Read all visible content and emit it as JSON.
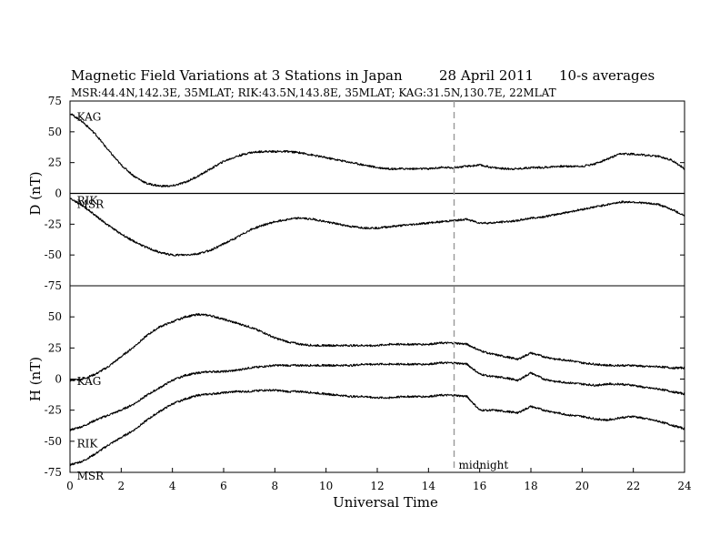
{
  "chart_data": {
    "type": "line",
    "title": {
      "main": "Magnetic Field Variations at 3 Stations in Japan",
      "date": "28  April     2011",
      "avg": "10-s averages"
    },
    "subtitle": "MSR:44.4N,142.3E, 35MLAT;  RIK:43.5N,143.8E, 35MLAT;  KAG:31.5N,130.7E, 22MLAT",
    "xlabel": "Universal Time",
    "xlim": [
      0,
      24
    ],
    "xticks": [
      "0",
      "2",
      "4",
      "6",
      "8",
      "10",
      "12",
      "14",
      "16",
      "18",
      "20",
      "22",
      "24"
    ],
    "grid": false,
    "annotation": {
      "label": "midnight",
      "x": 15
    },
    "panels": [
      {
        "ylabel": "D (nT)",
        "ylim": [
          -75,
          75
        ],
        "yticks": [
          "75",
          "50",
          "25",
          "0",
          "-25",
          "-50",
          "-75"
        ],
        "zero_line": true,
        "station_labels": [
          {
            "text": "KAG",
            "x": 0.2,
            "y": 62
          },
          {
            "text": "RIK",
            "x": 0.2,
            "y": -6
          },
          {
            "text": "MSR",
            "x": 0.2,
            "y": -9
          }
        ],
        "series": [
          {
            "station": "KAG",
            "x": [
              0,
              0.5,
              1,
              1.5,
              2,
              2.5,
              3,
              3.5,
              4,
              4.5,
              5,
              5.5,
              6,
              6.5,
              7,
              7.5,
              8,
              8.5,
              9,
              9.5,
              10,
              10.5,
              11,
              11.5,
              12,
              12.5,
              13,
              13.5,
              14,
              14.5,
              15,
              15.5,
              16,
              16.5,
              17,
              17.5,
              18,
              18.5,
              19,
              19.5,
              20,
              20.5,
              21,
              21.5,
              22,
              22.5,
              23,
              23.5,
              24
            ],
            "values": [
              65,
              58,
              48,
              35,
              23,
              14,
              8,
              6,
              6,
              9,
              14,
              20,
              26,
              30,
              33,
              34,
              34,
              34,
              33,
              31,
              29,
              27,
              25,
              23,
              21,
              20,
              20,
              20,
              20,
              21,
              21,
              22,
              23,
              21,
              20,
              20,
              21,
              21,
              22,
              22,
              22,
              24,
              28,
              32,
              32,
              31,
              30,
              27,
              20
            ]
          },
          {
            "station": "RIK/MSR",
            "x": [
              0,
              0.5,
              1,
              1.5,
              2,
              2.5,
              3,
              3.5,
              4,
              4.5,
              5,
              5.5,
              6,
              6.5,
              7,
              7.5,
              8,
              8.5,
              9,
              9.5,
              10,
              10.5,
              11,
              11.5,
              12,
              12.5,
              13,
              13.5,
              14,
              14.5,
              15,
              15.5,
              16,
              16.5,
              17,
              17.5,
              18,
              18.5,
              19,
              19.5,
              20,
              20.5,
              21,
              21.5,
              22,
              22.5,
              23,
              23.5,
              24
            ],
            "values": [
              -4,
              -10,
              -18,
              -26,
              -33,
              -39,
              -44,
              -48,
              -50,
              -50,
              -49,
              -46,
              -41,
              -36,
              -30,
              -26,
              -23,
              -21,
              -20,
              -21,
              -23,
              -25,
              -27,
              -28,
              -28,
              -27,
              -26,
              -25,
              -24,
              -23,
              -22,
              -21,
              -24,
              -24,
              -23,
              -22,
              -20,
              -19,
              -17,
              -15,
              -13,
              -11,
              -9,
              -7,
              -7,
              -8,
              -9,
              -13,
              -18
            ]
          }
        ]
      },
      {
        "ylabel": "H (nT)",
        "ylim": [
          -75,
          75
        ],
        "yticks": [
          "50",
          "25",
          "0",
          "-25",
          "-50",
          "-75"
        ],
        "zero_line": false,
        "station_labels": [
          {
            "text": "KAG",
            "x": 0.2,
            "y": -2
          },
          {
            "text": "RIK",
            "x": 0.2,
            "y": -52
          },
          {
            "text": "MSR",
            "x": 0.2,
            "y": -78
          }
        ],
        "series": [
          {
            "station": "KAG",
            "x": [
              0,
              0.5,
              1,
              1.5,
              2,
              2.5,
              3,
              3.5,
              4,
              4.5,
              5,
              5.5,
              6,
              6.5,
              7,
              7.5,
              8,
              8.5,
              9,
              9.5,
              10,
              10.5,
              11,
              11.5,
              12,
              12.5,
              13,
              13.5,
              14,
              14.5,
              15,
              15.5,
              16,
              16.5,
              17,
              17.5,
              18,
              18.5,
              19,
              19.5,
              20,
              20.5,
              21,
              21.5,
              22,
              22.5,
              23,
              23.5,
              24
            ],
            "values": [
              -1,
              0,
              4,
              10,
              18,
              26,
              35,
              42,
              46,
              50,
              52,
              51,
              48,
              45,
              42,
              38,
              33,
              30,
              28,
              27,
              27,
              27,
              27,
              27,
              27,
              28,
              28,
              28,
              28,
              29,
              29,
              28,
              23,
              20,
              18,
              16,
              21,
              18,
              16,
              15,
              13,
              12,
              11,
              11,
              11,
              10,
              10,
              9,
              9
            ]
          },
          {
            "station": "RIK",
            "x": [
              0,
              0.5,
              1,
              1.5,
              2,
              2.5,
              3,
              3.5,
              4,
              4.5,
              5,
              5.5,
              6,
              6.5,
              7,
              7.5,
              8,
              8.5,
              9,
              9.5,
              10,
              10.5,
              11,
              11.5,
              12,
              12.5,
              13,
              13.5,
              14,
              14.5,
              15,
              15.5,
              16,
              16.5,
              17,
              17.5,
              18,
              18.5,
              19,
              19.5,
              20,
              20.5,
              21,
              21.5,
              22,
              22.5,
              23,
              23.5,
              24
            ],
            "values": [
              -41,
              -38,
              -33,
              -29,
              -25,
              -20,
              -13,
              -7,
              -1,
              3,
              5,
              6,
              6,
              7,
              9,
              10,
              11,
              11,
              11,
              11,
              11,
              11,
              11,
              12,
              12,
              12,
              12,
              12,
              12,
              13,
              13,
              12,
              4,
              2,
              1,
              -1,
              5,
              0,
              -2,
              -3,
              -4,
              -5,
              -4,
              -4,
              -5,
              -7,
              -8,
              -10,
              -12
            ]
          },
          {
            "station": "MSR",
            "x": [
              0,
              0.5,
              1,
              1.5,
              2,
              2.5,
              3,
              3.5,
              4,
              4.5,
              5,
              5.5,
              6,
              6.5,
              7,
              7.5,
              8,
              8.5,
              9,
              9.5,
              10,
              10.5,
              11,
              11.5,
              12,
              12.5,
              13,
              13.5,
              14,
              14.5,
              15,
              15.5,
              16,
              16.5,
              17,
              17.5,
              18,
              18.5,
              19,
              19.5,
              20,
              20.5,
              21,
              21.5,
              22,
              22.5,
              23,
              23.5,
              24
            ],
            "values": [
              -69,
              -66,
              -60,
              -53,
              -47,
              -41,
              -33,
              -26,
              -20,
              -16,
              -13,
              -12,
              -11,
              -10,
              -10,
              -9,
              -9,
              -10,
              -10,
              -11,
              -12,
              -13,
              -14,
              -14,
              -15,
              -15,
              -14,
              -14,
              -14,
              -13,
              -13,
              -14,
              -25,
              -25,
              -26,
              -27,
              -22,
              -25,
              -27,
              -29,
              -30,
              -32,
              -33,
              -31,
              -30,
              -32,
              -34,
              -37,
              -40
            ]
          }
        ]
      }
    ]
  }
}
